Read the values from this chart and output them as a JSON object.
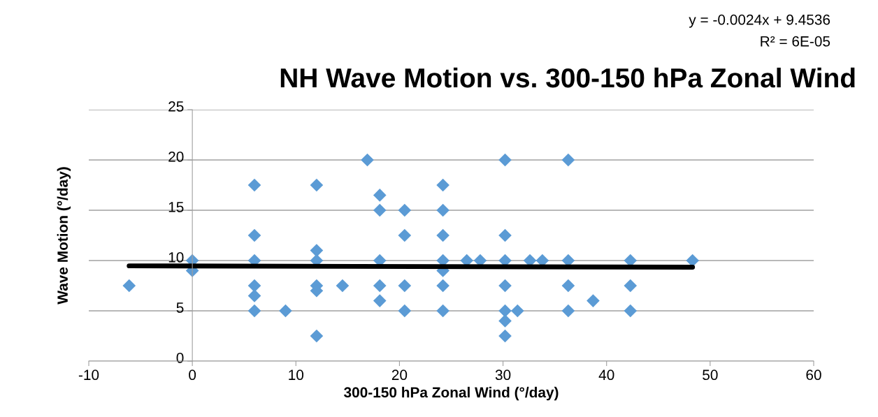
{
  "chart_data": {
    "type": "scatter",
    "title": "NH Wave Motion vs. 300-150 hPa Zonal Wind",
    "xlabel": "300-150 hPa Zonal Wind (°/day)",
    "ylabel": "Wave Motion (°/day)",
    "annotations": [
      "y = -0.0024x + 9.4536",
      "R² = 6E-05"
    ],
    "xlim": [
      -10,
      60
    ],
    "xticks": [
      -10,
      0,
      10,
      20,
      30,
      40,
      50,
      60
    ],
    "ylim": [
      0,
      25
    ],
    "yticks": [
      0,
      5,
      10,
      15,
      20,
      25
    ],
    "grid": "y",
    "legend": false,
    "series": [
      {
        "color": "#5b9bd5",
        "marker": "diamond",
        "x": [
          -6.1,
          0,
          0,
          6,
          6,
          6,
          6,
          6,
          6,
          9,
          12,
          12,
          12,
          12,
          12,
          12,
          14.5,
          16.9,
          18.1,
          18.1,
          18.1,
          18.1,
          18.1,
          20.5,
          20.5,
          20.5,
          20.5,
          24.2,
          24.2,
          24.2,
          24.2,
          24.2,
          24.2,
          24.2,
          26.5,
          27.8,
          30.2,
          30.2,
          30.2,
          30.2,
          30.2,
          30.2,
          30.2,
          31.4,
          32.6,
          33.8,
          36.3,
          36.3,
          36.3,
          36.3,
          38.7,
          42.3,
          42.3,
          42.3,
          48.3
        ],
        "values": [
          7.5,
          10,
          9,
          17.5,
          12.5,
          10,
          7.5,
          6.5,
          5,
          5,
          17.5,
          11,
          10,
          7.5,
          7,
          2.5,
          7.5,
          20,
          16.5,
          15,
          10,
          7.5,
          6,
          15,
          12.5,
          7.5,
          5,
          17.5,
          15,
          12.5,
          10,
          9,
          7.5,
          5,
          10,
          10,
          20,
          12.5,
          10,
          7.5,
          5,
          4,
          2.5,
          5,
          10,
          10,
          20,
          10,
          7.5,
          5,
          6,
          10,
          7.5,
          5,
          10
        ]
      },
      {
        "type": "line",
        "color": "#000000",
        "x": [
          -6.1,
          48.3
        ],
        "values": [
          9.47,
          9.34
        ],
        "marker": "none"
      }
    ]
  }
}
